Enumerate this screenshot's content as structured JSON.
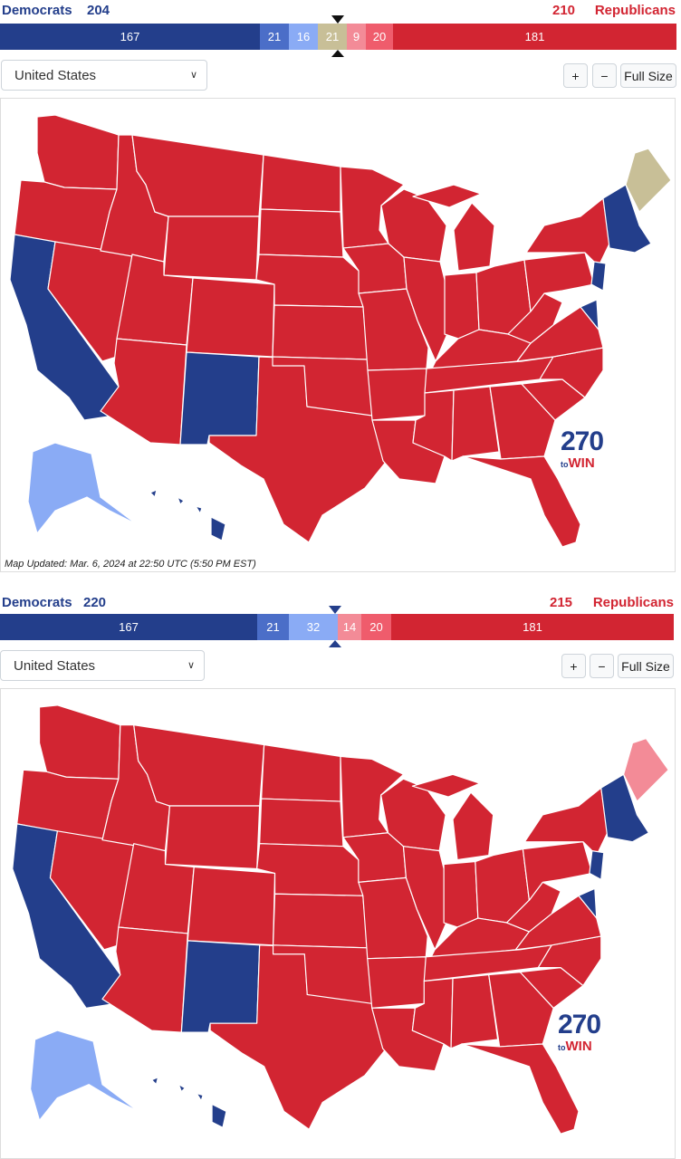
{
  "colors": {
    "safe_dem": "#233e8b",
    "likely_dem": "#4b6ec8",
    "lean_dem": "#8aabf5",
    "tossup": "#c8bf97",
    "lean_rep": "#f38b97",
    "likely_rep": "#ef5c6c",
    "safe_rep": "#d22532",
    "border": "#ffffff"
  },
  "panels": [
    {
      "score": {
        "dem_label": "Democrats",
        "dem_total": "204",
        "rep_total": "210",
        "rep_label": "Republicans"
      },
      "segments": [
        {
          "value": "167",
          "rating": "safe_dem"
        },
        {
          "value": "21",
          "rating": "likely_dem"
        },
        {
          "value": "16",
          "rating": "lean_dem"
        },
        {
          "value": "21",
          "rating": "tossup"
        },
        {
          "value": "9",
          "rating": "lean_rep"
        },
        {
          "value": "20",
          "rating": "likely_rep"
        },
        {
          "value": "181",
          "rating": "safe_rep"
        }
      ],
      "region_select": "United States",
      "zoom_in": "+",
      "zoom_out": "−",
      "full_size": "Full Size",
      "logo_number": "270",
      "logo_to": "to",
      "logo_win": "WIN",
      "updated": "Map Updated: Mar. 6, 2024 at 22:50 UTC (5:50 PM EST)",
      "states": {
        "washington": "safe_rep",
        "oregon": "safe_rep",
        "california": "safe_dem",
        "nevada": "safe_rep",
        "idaho": "safe_rep",
        "montana": "safe_rep",
        "wyoming": "safe_rep",
        "utah": "safe_rep",
        "colorado": "safe_rep",
        "arizona": "safe_rep",
        "new_mexico": "safe_dem",
        "texas": "safe_rep",
        "north_dakota": "safe_rep",
        "south_dakota": "safe_rep",
        "nebraska": "safe_rep",
        "kansas": "safe_rep",
        "oklahoma": "safe_rep",
        "minnesota": "safe_rep",
        "iowa": "safe_rep",
        "missouri": "safe_rep",
        "arkansas": "safe_rep",
        "louisiana": "safe_rep",
        "wisconsin": "safe_rep",
        "illinois": "safe_rep",
        "michigan": "safe_rep",
        "indiana": "safe_rep",
        "ohio": "safe_rep",
        "kentucky": "safe_rep",
        "tennessee": "safe_rep",
        "mississippi": "safe_rep",
        "alabama": "safe_rep",
        "georgia": "safe_rep",
        "florida": "safe_rep",
        "south_carolina": "safe_rep",
        "north_carolina": "safe_rep",
        "virginia": "safe_rep",
        "west_virginia": "safe_rep",
        "pennsylvania": "safe_rep",
        "new_york": "safe_rep",
        "new_jersey": "safe_dem",
        "new_england": "safe_dem",
        "maine": "tossup",
        "alaska": "lean_dem",
        "hawaii": "safe_dem"
      }
    },
    {
      "score": {
        "dem_label": "Democrats",
        "dem_total": "220",
        "rep_total": "215",
        "rep_label": "Republicans"
      },
      "segments": [
        {
          "value": "167",
          "rating": "safe_dem"
        },
        {
          "value": "21",
          "rating": "likely_dem"
        },
        {
          "value": "32",
          "rating": "lean_dem"
        },
        {
          "value": "14",
          "rating": "lean_rep"
        },
        {
          "value": "20",
          "rating": "likely_rep"
        },
        {
          "value": "181",
          "rating": "safe_rep"
        }
      ],
      "region_select": "United States",
      "zoom_in": "+",
      "zoom_out": "−",
      "full_size": "Full Size",
      "logo_number": "270",
      "logo_to": "to",
      "logo_win": "WIN",
      "updated": "",
      "states": {
        "washington": "safe_rep",
        "oregon": "safe_rep",
        "california": "safe_dem",
        "nevada": "safe_rep",
        "idaho": "safe_rep",
        "montana": "safe_rep",
        "wyoming": "safe_rep",
        "utah": "safe_rep",
        "colorado": "safe_rep",
        "arizona": "safe_rep",
        "new_mexico": "safe_dem",
        "texas": "safe_rep",
        "north_dakota": "safe_rep",
        "south_dakota": "safe_rep",
        "nebraska": "safe_rep",
        "kansas": "safe_rep",
        "oklahoma": "safe_rep",
        "minnesota": "safe_rep",
        "iowa": "safe_rep",
        "missouri": "safe_rep",
        "arkansas": "safe_rep",
        "louisiana": "safe_rep",
        "wisconsin": "safe_rep",
        "illinois": "safe_rep",
        "michigan": "safe_rep",
        "indiana": "safe_rep",
        "ohio": "safe_rep",
        "kentucky": "safe_rep",
        "tennessee": "safe_rep",
        "mississippi": "safe_rep",
        "alabama": "safe_rep",
        "georgia": "safe_rep",
        "florida": "safe_rep",
        "south_carolina": "safe_rep",
        "north_carolina": "safe_rep",
        "virginia": "safe_rep",
        "west_virginia": "safe_rep",
        "pennsylvania": "safe_rep",
        "new_york": "safe_rep",
        "new_jersey": "safe_dem",
        "new_england": "safe_dem",
        "maine": "lean_rep",
        "alaska": "lean_dem",
        "hawaii": "safe_dem"
      }
    }
  ]
}
